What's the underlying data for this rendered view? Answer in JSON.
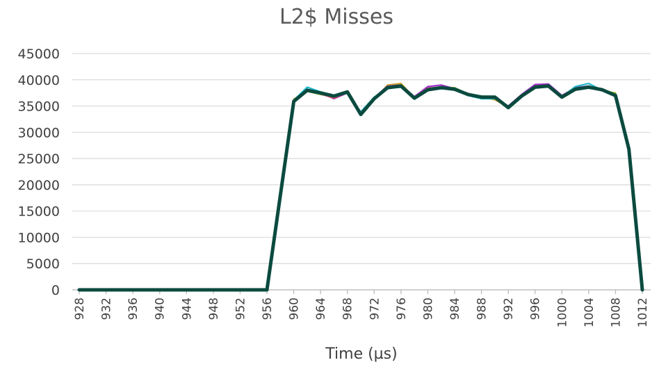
{
  "chart_data": {
    "type": "line",
    "title": "L2$ Misses",
    "xlabel": "Time (µs)",
    "ylabel": "",
    "ylim": [
      0,
      45000
    ],
    "yticks": [
      0,
      5000,
      10000,
      15000,
      20000,
      25000,
      30000,
      35000,
      40000,
      45000
    ],
    "xlim": [
      928,
      1012
    ],
    "xticks": [
      928,
      932,
      936,
      940,
      944,
      948,
      952,
      956,
      960,
      964,
      968,
      972,
      976,
      980,
      984,
      988,
      992,
      996,
      1000,
      1004,
      1008,
      1012
    ],
    "grid": "horizontal",
    "legend": "none",
    "x": [
      928,
      930,
      932,
      934,
      936,
      938,
      940,
      942,
      944,
      946,
      948,
      950,
      952,
      954,
      956,
      958,
      960,
      962,
      964,
      966,
      968,
      970,
      972,
      974,
      976,
      978,
      980,
      982,
      984,
      986,
      988,
      990,
      992,
      994,
      996,
      998,
      1000,
      1002,
      1004,
      1006,
      1008,
      1010,
      1012
    ],
    "series": [
      {
        "color": "#c9a227",
        "values": [
          0,
          0,
          0,
          0,
          0,
          0,
          0,
          0,
          0,
          0,
          0,
          0,
          0,
          0,
          0,
          18000,
          36300,
          37900,
          37400,
          36900,
          37600,
          33600,
          36300,
          39000,
          39300,
          36600,
          38300,
          38500,
          38300,
          37400,
          36800,
          36200,
          34800,
          37000,
          38700,
          38800,
          36700,
          38200,
          38600,
          37900,
          37500,
          26800,
          0
        ]
      },
      {
        "color": "#9b30c8",
        "values": [
          0,
          0,
          0,
          0,
          0,
          0,
          0,
          0,
          0,
          0,
          0,
          0,
          0,
          0,
          0,
          18000,
          36000,
          38200,
          37500,
          36400,
          37500,
          33500,
          36600,
          38800,
          39000,
          36800,
          38700,
          39000,
          38300,
          37200,
          36700,
          36600,
          35000,
          37200,
          39100,
          39200,
          37000,
          38500,
          38800,
          38100,
          37100,
          26800,
          0
        ]
      },
      {
        "color": "#1fb6c9",
        "values": [
          0,
          0,
          0,
          0,
          0,
          0,
          0,
          0,
          0,
          0,
          0,
          0,
          0,
          0,
          0,
          18000,
          36100,
          38600,
          37700,
          37000,
          37400,
          33900,
          36700,
          38400,
          38600,
          36500,
          38100,
          38300,
          38200,
          37000,
          36400,
          36400,
          34800,
          37000,
          38500,
          38700,
          36800,
          38700,
          39300,
          38000,
          36800,
          26800,
          0
        ]
      },
      {
        "color": "#7db93a",
        "values": [
          0,
          0,
          0,
          0,
          0,
          0,
          0,
          0,
          0,
          0,
          0,
          0,
          0,
          0,
          0,
          18000,
          36200,
          37800,
          37200,
          36800,
          37700,
          33400,
          36500,
          38700,
          38900,
          36600,
          38200,
          38400,
          38500,
          37300,
          36900,
          36800,
          34700,
          37100,
          38600,
          38900,
          36600,
          38300,
          38400,
          38100,
          37400,
          26800,
          0
        ]
      },
      {
        "color": "#d94f6a",
        "values": [
          0,
          0,
          0,
          0,
          0,
          0,
          0,
          0,
          0,
          0,
          0,
          0,
          0,
          0,
          0,
          18000,
          35900,
          38000,
          37300,
          36500,
          37600,
          33300,
          36400,
          38600,
          38800,
          36700,
          38400,
          38600,
          38300,
          37400,
          36700,
          36500,
          34900,
          37000,
          38800,
          39000,
          36900,
          38400,
          38700,
          37900,
          37200,
          26800,
          0
        ]
      },
      {
        "color": "#0b4a3f",
        "values": [
          0,
          0,
          0,
          0,
          0,
          0,
          0,
          0,
          0,
          0,
          0,
          0,
          0,
          0,
          0,
          18000,
          35900,
          38000,
          37500,
          36900,
          37700,
          33400,
          36400,
          38500,
          38800,
          36500,
          38100,
          38500,
          38200,
          37200,
          36700,
          36700,
          34700,
          36900,
          38600,
          38800,
          36700,
          38200,
          38600,
          38100,
          37000,
          26800,
          0
        ]
      }
    ]
  }
}
